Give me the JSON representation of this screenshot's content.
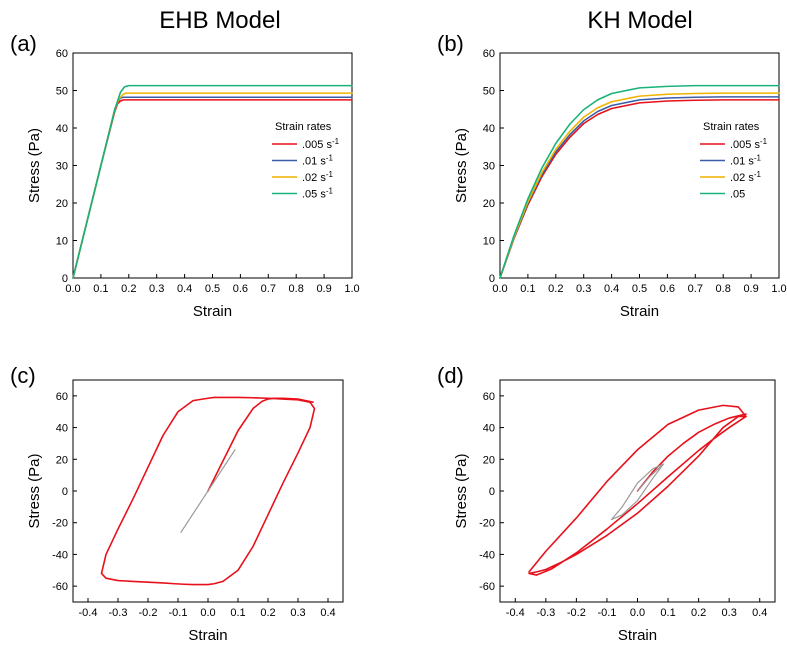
{
  "chart_data": [
    {
      "panel_letter": "(a)",
      "column_title": "EHB Model",
      "type": "line",
      "xlabel": "Strain",
      "ylabel": "Stress (Pa)",
      "xlim": [
        0,
        1
      ],
      "ylim": [
        0,
        60
      ],
      "xticks": [
        "0.0",
        "0.1",
        "0.2",
        "0.3",
        "0.4",
        "0.5",
        "0.6",
        "0.7",
        "0.8",
        "0.9",
        "1.0"
      ],
      "yticks": [
        "0",
        "10",
        "20",
        "30",
        "40",
        "50",
        "60"
      ],
      "legend": {
        "title": "Strain rates",
        "placement": "right"
      },
      "series": [
        {
          "name": ".005 s",
          "sup": "-1",
          "color": "#e8101a",
          "x": [
            0,
            0.05,
            0.1,
            0.15,
            0.16,
            0.17,
            0.18,
            1.0
          ],
          "y": [
            0,
            15,
            30,
            44.5,
            46.5,
            47.2,
            47.5,
            47.5
          ]
        },
        {
          "name": ".01 s",
          "sup": "-1",
          "color": "#3a5fa8",
          "x": [
            0,
            0.05,
            0.1,
            0.15,
            0.16,
            0.17,
            0.18,
            1.0
          ],
          "y": [
            0,
            15,
            30,
            45,
            47,
            48,
            48.2,
            48.2
          ]
        },
        {
          "name": ".02 s",
          "sup": "-1",
          "color": "#f0b400",
          "x": [
            0,
            0.05,
            0.1,
            0.15,
            0.165,
            0.18,
            0.19,
            1.0
          ],
          "y": [
            0,
            15,
            30,
            45,
            47.8,
            49,
            49.3,
            49.3
          ]
        },
        {
          "name": ".05 s",
          "sup": "-1",
          "color": "#19b37a",
          "x": [
            0,
            0.05,
            0.1,
            0.15,
            0.17,
            0.185,
            0.2,
            1.0
          ],
          "y": [
            0,
            15,
            30,
            45,
            49.5,
            51,
            51.3,
            51.3
          ]
        }
      ]
    },
    {
      "panel_letter": "(b)",
      "column_title": "KH Model",
      "type": "line",
      "xlabel": "Strain",
      "ylabel": "Stress (Pa)",
      "xlim": [
        0,
        1
      ],
      "ylim": [
        0,
        60
      ],
      "xticks": [
        "0.0",
        "0.1",
        "0.2",
        "0.3",
        "0.4",
        "0.5",
        "0.6",
        "0.7",
        "0.8",
        "0.9",
        "1.0"
      ],
      "yticks": [
        "0",
        "10",
        "20",
        "30",
        "40",
        "50",
        "60"
      ],
      "legend": {
        "title": "Strain rates",
        "placement": "right"
      },
      "series": [
        {
          "name": ".005 s",
          "sup": "-1",
          "color": "#e8101a",
          "x": [
            0,
            0.05,
            0.1,
            0.15,
            0.2,
            0.25,
            0.3,
            0.35,
            0.4,
            0.5,
            0.6,
            0.7,
            0.8,
            1.0
          ],
          "y": [
            0,
            10.5,
            19.5,
            27,
            33,
            37.5,
            41.2,
            43.6,
            45.2,
            46.7,
            47.2,
            47.4,
            47.5,
            47.5
          ]
        },
        {
          "name": ".01 s",
          "sup": "-1",
          "color": "#3a5fa8",
          "x": [
            0,
            0.05,
            0.1,
            0.15,
            0.2,
            0.25,
            0.3,
            0.35,
            0.4,
            0.5,
            0.6,
            0.7,
            0.8,
            1.0
          ],
          "y": [
            0,
            10.7,
            19.9,
            27.5,
            33.6,
            38.2,
            41.9,
            44.4,
            46.0,
            47.5,
            48.0,
            48.2,
            48.3,
            48.3
          ]
        },
        {
          "name": ".02 s",
          "sup": "-1",
          "color": "#f0b400",
          "x": [
            0,
            0.05,
            0.1,
            0.15,
            0.2,
            0.25,
            0.3,
            0.35,
            0.4,
            0.5,
            0.6,
            0.7,
            0.8,
            1.0
          ],
          "y": [
            0,
            10.9,
            20.3,
            28.1,
            34.3,
            39.1,
            42.9,
            45.4,
            47.0,
            48.5,
            49.0,
            49.2,
            49.3,
            49.3
          ]
        },
        {
          "name": ".05",
          "sup": "",
          "color": "#19b37a",
          "x": [
            0,
            0.05,
            0.1,
            0.15,
            0.2,
            0.25,
            0.3,
            0.35,
            0.4,
            0.5,
            0.6,
            0.7,
            0.8,
            1.0
          ],
          "y": [
            0,
            11.3,
            21.1,
            29.3,
            35.9,
            41.0,
            44.9,
            47.5,
            49.2,
            50.7,
            51.1,
            51.3,
            51.3,
            51.3
          ]
        }
      ]
    },
    {
      "panel_letter": "(c)",
      "type": "line",
      "xlabel": "Strain",
      "ylabel": "Stress (Pa)",
      "xlim": [
        -0.45,
        0.45
      ],
      "ylim": [
        -70,
        70
      ],
      "xticks": [
        "-0.4",
        "-0.3",
        "-0.2",
        "-0.1",
        "0.0",
        "0.1",
        "0.2",
        "0.3",
        "0.4"
      ],
      "yticks": [
        "-60",
        "-40",
        "-20",
        "0",
        "20",
        "40",
        "60"
      ],
      "series": [
        {
          "color": "#e8101a",
          "closed": true,
          "x": [
            0.355,
            0.34,
            0.3,
            0.25,
            0.2,
            0.15,
            0.1,
            0.05,
            0.02,
            0.0,
            -0.02,
            -0.05,
            -0.08,
            -0.11,
            -0.15,
            -0.2,
            -0.25,
            -0.3,
            -0.34,
            -0.355,
            -0.34,
            -0.3,
            -0.25,
            -0.2,
            -0.15,
            -0.1,
            -0.05,
            0.0,
            0.02,
            0.05,
            0.1,
            0.15,
            0.2,
            0.25,
            0.3,
            0.34
          ],
          "y": [
            52,
            40,
            24,
            5,
            -15,
            -35,
            -50,
            -57,
            -58.5,
            -59,
            -59,
            -59,
            -58.8,
            -58.5,
            -58,
            -57.5,
            -57,
            -56.5,
            -55,
            -52,
            -40,
            -24,
            -5,
            15,
            35,
            50,
            57,
            58.5,
            59,
            59,
            59,
            58.8,
            58.5,
            58,
            57.5,
            56
          ]
        },
        {
          "color": "#e8101a",
          "closed": false,
          "x": [
            0.0,
            0.05,
            0.1,
            0.15,
            0.18,
            0.2,
            0.22,
            0.25,
            0.3,
            0.35
          ],
          "y": [
            0,
            19,
            38,
            52,
            56.5,
            58,
            58.5,
            58.5,
            58,
            56
          ]
        },
        {
          "color": "#9a9a9a",
          "closed": false,
          "x": [
            -0.09,
            0.09
          ],
          "y": [
            -26,
            26
          ]
        }
      ]
    },
    {
      "panel_letter": "(d)",
      "type": "line",
      "xlabel": "Strain",
      "ylabel": "Stress (Pa)",
      "xlim": [
        -0.45,
        0.45
      ],
      "ylim": [
        -70,
        70
      ],
      "xticks": [
        "-0.4",
        "-0.3",
        "-0.2",
        "-0.1",
        "0.0",
        "0.1",
        "0.2",
        "0.3",
        "0.4"
      ],
      "yticks": [
        "-60",
        "-40",
        "-20",
        "0",
        "20",
        "40",
        "60"
      ],
      "series": [
        {
          "color": "#e8101a",
          "closed": true,
          "x": [
            0.355,
            0.3,
            0.25,
            0.2,
            0.1,
            0.0,
            -0.1,
            -0.2,
            -0.28,
            -0.33,
            -0.355,
            -0.33,
            -0.3,
            -0.25,
            -0.2,
            -0.1,
            0.0,
            0.1,
            0.2,
            0.28,
            0.33
          ],
          "y": [
            47,
            40,
            33,
            25.5,
            9,
            -8,
            -24,
            -39,
            -49,
            -53,
            -52,
            -51,
            -49.5,
            -45,
            -40,
            -28,
            -14,
            3,
            22,
            40,
            47
          ]
        },
        {
          "color": "#e8101a",
          "closed": false,
          "x": [
            0.355,
            0.33,
            0.28,
            0.2,
            0.1,
            0.0,
            -0.1,
            -0.2,
            -0.3,
            -0.355
          ],
          "y": [
            47,
            53,
            54,
            51,
            42,
            26,
            6,
            -17,
            -38,
            -51
          ]
        },
        {
          "color": "#e8101a",
          "closed": false,
          "x": [
            0.0,
            0.05,
            0.1,
            0.15,
            0.2,
            0.25,
            0.3,
            0.355
          ],
          "y": [
            0,
            12,
            22,
            30,
            37,
            42,
            46,
            48.5
          ]
        },
        {
          "color": "#9a9a9a",
          "closed": true,
          "x": [
            0.085,
            0.05,
            0.0,
            -0.05,
            -0.085,
            -0.05,
            0.0,
            0.05
          ],
          "y": [
            17,
            8,
            -6,
            -15,
            -18,
            -10,
            5,
            14
          ]
        },
        {
          "color": "#9a9a9a",
          "closed": false,
          "x": [
            0.0,
            0.04,
            0.085
          ],
          "y": [
            0,
            9,
            17
          ]
        }
      ]
    }
  ]
}
